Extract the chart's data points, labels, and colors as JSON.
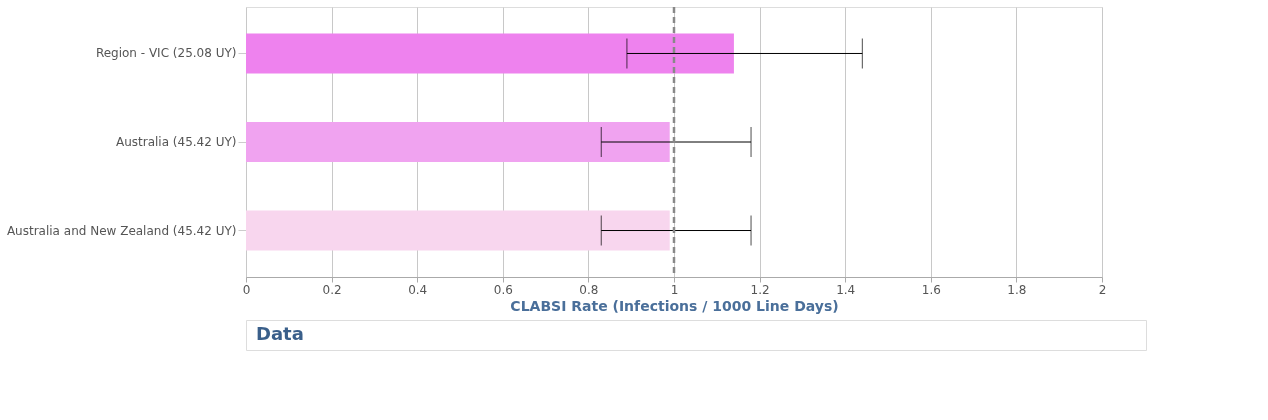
{
  "chart_data": {
    "type": "bar",
    "orientation": "horizontal",
    "xlabel": "CLABSI Rate (Infections / 1000 Line Days)",
    "categories": [
      "Region - VIC (25.08 UY)",
      "Australia (45.42 UY)",
      "Australia and New Zealand (45.42 UY)"
    ],
    "values": [
      1.14,
      0.99,
      0.99
    ],
    "colors": [
      "#ee82ee",
      "#f0a3f0",
      "#f8d6ee"
    ],
    "errors": [
      [
        0.89,
        1.44
      ],
      [
        0.83,
        1.18
      ],
      [
        0.83,
        1.18
      ]
    ],
    "xlim": [
      0,
      2
    ],
    "xticks": [
      0,
      0.2,
      0.4,
      0.6,
      0.8,
      1,
      1.2,
      1.4,
      1.6,
      1.8,
      2
    ],
    "grid": "x",
    "ref_lines": [
      {
        "axis": "x",
        "value": 1,
        "color": "#888888",
        "line_style": "dashed"
      }
    ],
    "annotations": [
      "Data"
    ]
  }
}
